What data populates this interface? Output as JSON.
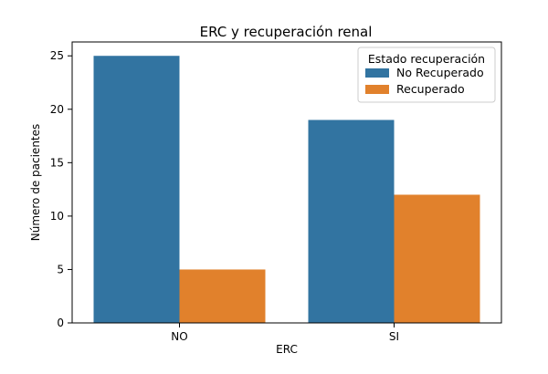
{
  "chart_data": {
    "type": "bar",
    "title": "ERC y recuperación renal",
    "xlabel": "ERC",
    "ylabel": "Número de pacientes",
    "categories": [
      "NO",
      "SI"
    ],
    "ylim": [
      0,
      26.3
    ],
    "yticks": [
      0,
      5,
      10,
      15,
      20,
      25
    ],
    "grid": false,
    "legend": {
      "title": "Estado recuperación",
      "placement": "top-right"
    },
    "series": [
      {
        "name": "No Recuperado",
        "color": "#3274a1",
        "values": [
          25,
          19
        ]
      },
      {
        "name": "Recuperado",
        "color": "#e1812c",
        "values": [
          5,
          12
        ]
      }
    ]
  }
}
